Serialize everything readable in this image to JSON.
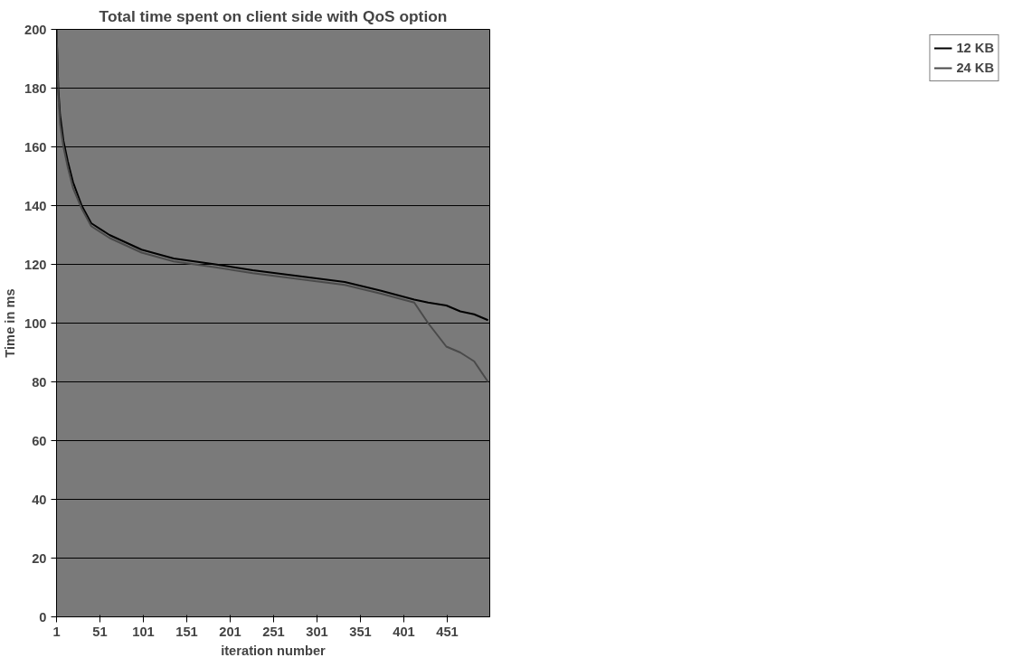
{
  "chart_data": {
    "type": "line",
    "title": "Total time spent on client side with QoS option",
    "xlabel": "iteration number",
    "ylabel": "Time in ms",
    "x": [
      1,
      3,
      5,
      9,
      14,
      20,
      30,
      41,
      62,
      99,
      136,
      184,
      227,
      280,
      333,
      375,
      413,
      429,
      450,
      466,
      482,
      498
    ],
    "series": [
      {
        "name": "12 KB",
        "color": "#000000",
        "values": [
          200,
          180,
          171,
          162,
          155,
          148,
          140,
          134,
          130,
          125,
          122,
          120,
          118,
          116,
          114,
          111,
          108,
          107,
          106,
          104,
          103,
          101
        ]
      },
      {
        "name": "24 KB",
        "color": "#4a4a4a",
        "values": [
          200,
          178,
          168,
          160,
          153,
          146,
          139,
          133,
          129,
          124,
          121,
          119,
          117,
          115,
          113,
          110,
          107,
          100,
          92,
          90,
          87,
          80
        ]
      }
    ],
    "xlim": [
      1,
      500
    ],
    "ylim": [
      0,
      200
    ],
    "xticks": [
      1,
      51,
      101,
      151,
      201,
      251,
      301,
      351,
      401,
      451
    ],
    "yticks": [
      0,
      20,
      40,
      60,
      80,
      100,
      120,
      140,
      160,
      180,
      200
    ],
    "grid": "y",
    "legend": "right",
    "marker": "none",
    "line_style": "solid"
  }
}
